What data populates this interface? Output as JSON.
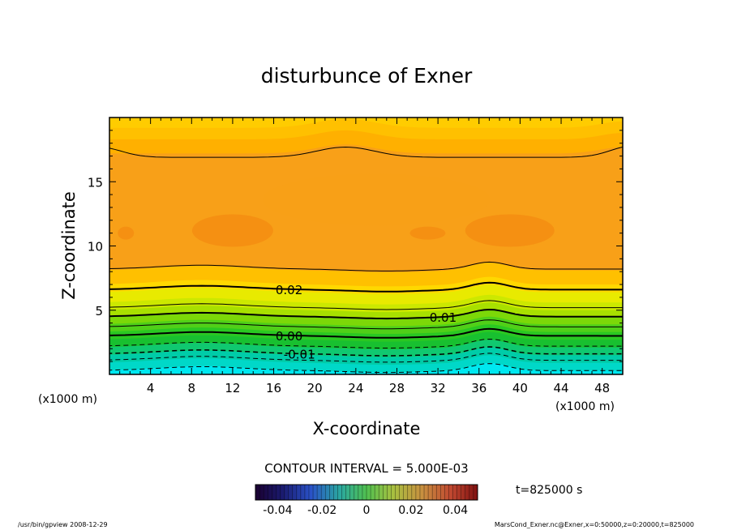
{
  "chart_data": {
    "type": "heatmap",
    "subtype": "filled-contour",
    "title": "disturbunce of Exner",
    "xlabel": "X-coordinate",
    "ylabel": "Z-coordinate",
    "x_unit_label": "(x1000 m)",
    "z_unit_label": "(x1000 m)",
    "xlim": [
      0,
      50
    ],
    "ylim": [
      0,
      20
    ],
    "x_ticks": [
      "4",
      "8",
      "12",
      "16",
      "20",
      "24",
      "28",
      "32",
      "36",
      "40",
      "44",
      "48"
    ],
    "y_ticks": [
      "5",
      "10",
      "15"
    ],
    "contour_interval_text": "CONTOUR INTERVAL = 5.000E-03",
    "contour_labels": [
      "0.02",
      "0.01",
      "0.00",
      "-0.01"
    ],
    "contour_levels": [
      -0.015,
      -0.01,
      -0.005,
      0.0,
      0.005,
      0.01,
      0.015,
      0.02,
      0.025
    ],
    "negative_contours_dashed": true,
    "colorbar": {
      "ticks": [
        "-0.04",
        "-0.02",
        "0",
        "0.02",
        "0.04"
      ],
      "range": [
        -0.05,
        0.05
      ]
    },
    "time_label": "t=825000 s",
    "colors": {
      "surface": "#00e8f0",
      "low": "#22c422",
      "mid": "#c6e600",
      "upper": "#ffb000",
      "core": "#f59012",
      "top": "#ffcc00"
    }
  },
  "footer": {
    "left": "/usr/bin/gpview   2008-12-29",
    "right": "MarsCond_Exner.nc@Exner,x=0:50000,z=0:20000,t=825000"
  }
}
